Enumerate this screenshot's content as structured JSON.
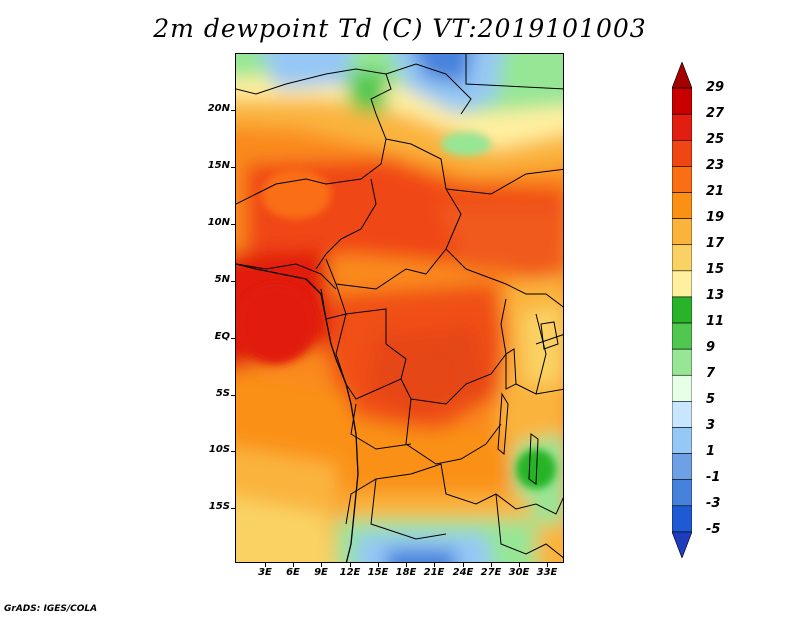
{
  "title": "2m dewpoint Td (C) VT:2019101003",
  "credit": "GrADS: IGES/COLA",
  "lat_labels": [
    "20N",
    "15N",
    "10N",
    "5N",
    "EQ",
    "5S",
    "10S",
    "15S"
  ],
  "lon_labels": [
    "3E",
    "6E",
    "9E",
    "12E",
    "15E",
    "18E",
    "21E",
    "24E",
    "27E",
    "30E",
    "33E"
  ],
  "colorbar": {
    "labels": [
      "29",
      "27",
      "25",
      "23",
      "21",
      "19",
      "17",
      "15",
      "13",
      "11",
      "9",
      "7",
      "5",
      "3",
      "1",
      "-1",
      "-3",
      "-5"
    ],
    "colors": [
      "#a50000",
      "#c80000",
      "#e11e0f",
      "#f04614",
      "#fa6e14",
      "#fa9114",
      "#fab43c",
      "#fad264",
      "#fff0a0",
      "#28b428",
      "#50c850",
      "#96e696",
      "#e6ffe6",
      "#c8e6ff",
      "#96c8f5",
      "#6ea0e6",
      "#4682dc",
      "#1e5ad2",
      "#1e3cbe"
    ]
  },
  "map": {
    "region": "Central Africa",
    "lon_range": [
      0,
      35
    ],
    "lat_range": [
      -20,
      25
    ]
  }
}
